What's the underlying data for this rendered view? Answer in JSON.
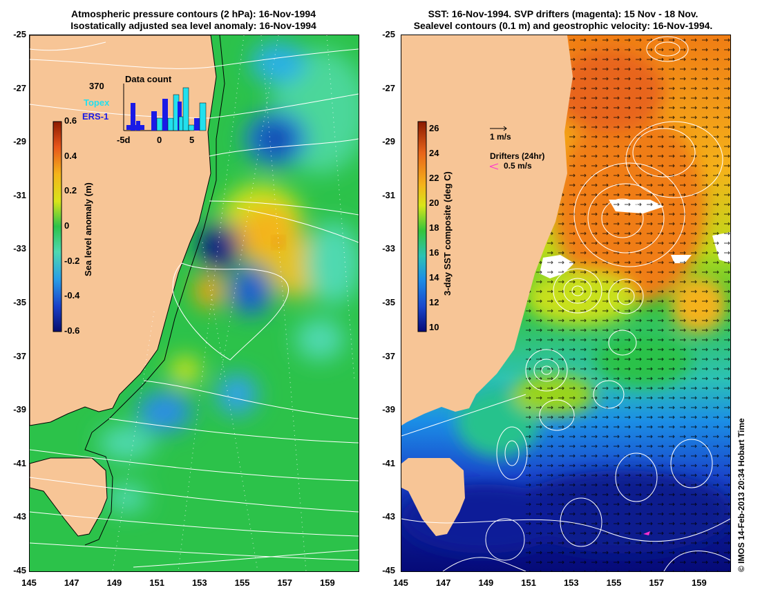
{
  "titles": {
    "left_line1": "Atmospheric pressure contours (2 hPa): 16-Nov-1994",
    "left_line2": "Isostatically adjusted sea level anomaly: 16-Nov-1994",
    "right_line1": "SST: 16-Nov-1994. SVP drifters (magenta): 15 Nov - 18 Nov.",
    "right_line2": "Sealevel contours (0.1 m) and geostrophic velocity: 16-Nov-1994."
  },
  "axes": {
    "lat_labels": [
      "-25",
      "-27",
      "-29",
      "-31",
      "-33",
      "-35",
      "-37",
      "-39",
      "-41",
      "-43",
      "-45"
    ],
    "lon_labels": [
      "145",
      "147",
      "149",
      "151",
      "153",
      "155",
      "157",
      "159"
    ]
  },
  "left_map": {
    "colorbar": {
      "label": "Sea level anomaly (m)",
      "ticks": [
        "0.6",
        "0.4",
        "0.2",
        "0",
        "-0.2",
        "-0.4",
        "-0.6"
      ],
      "range": [
        -0.6,
        0.6
      ]
    },
    "inset": {
      "title": "Data count",
      "max_count": "370",
      "legend_topex": "Topex",
      "legend_ers1": "ERS-1",
      "x_ticks": [
        "-5d",
        "0",
        "5"
      ],
      "topex_color": "#22e0ee",
      "ers1_color": "#1a1ae6"
    }
  },
  "right_map": {
    "colorbar": {
      "label": "3-day SST composite (deg C)",
      "ticks": [
        "26",
        "24",
        "22",
        "20",
        "18",
        "16",
        "14",
        "12",
        "10"
      ],
      "range": [
        10,
        27
      ]
    },
    "velocity_scale_label": "1 m/s",
    "drifters_label": "Drifters (24hr)",
    "drifters_scale_label": "0.5 m/s",
    "drifter_color": "#ff2fd0"
  },
  "copyright": "© IMOS 14-Feb-2013 20:34 Hobart Time",
  "colors": {
    "land": "#f7c596",
    "contour": "#ffffff",
    "coast": "#000000"
  }
}
